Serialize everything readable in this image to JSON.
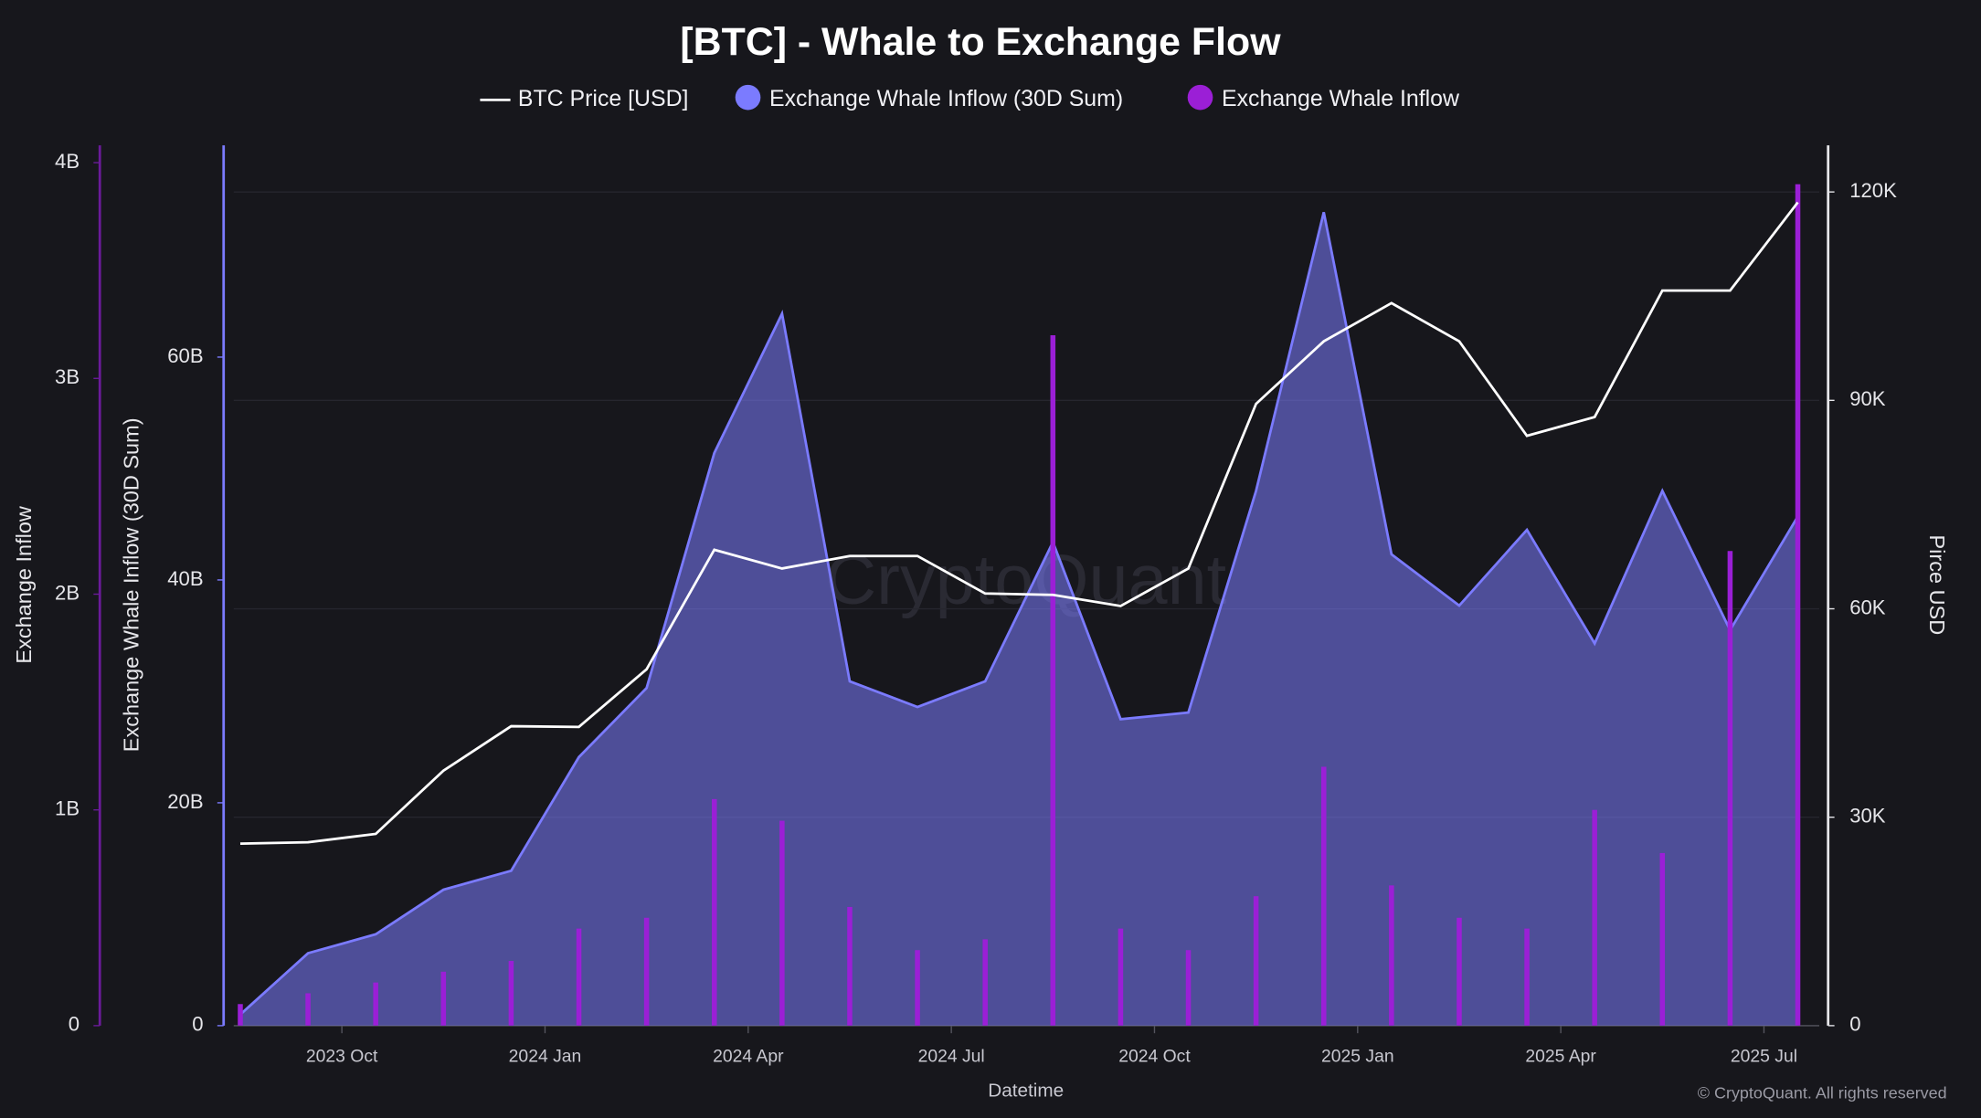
{
  "chart_data": {
    "type": "combo",
    "title": "[BTC] - Whale to Exchange Flow",
    "x_label": "Datetime",
    "y_label": "Exchange Whale Inflow (30D Sum)",
    "y2_label": "Pirce USD",
    "y3_label": "Exchange Inflow",
    "watermark": "CryptoQuant",
    "copyright": "© CryptoQuant. All rights reserved",
    "x": [
      "2023 Aug",
      "2023 Sep",
      "2023 Oct",
      "2023 Nov",
      "2023 Dec",
      "2024 Jan",
      "2024 Feb",
      "2024 Mar",
      "2024 Apr",
      "2024 May",
      "2024 Jun",
      "2024 Jul",
      "2024 Aug",
      "2024 Sep",
      "2024 Oct",
      "2024 Nov",
      "2024 Dec",
      "2025 Jan",
      "2025 Feb",
      "2025 Mar",
      "2025 Apr",
      "2025 May",
      "2025 Jun",
      "2025 Jul"
    ],
    "xticks": [
      "2023 Oct",
      "2024 Jan",
      "2024 Apr",
      "2024 Jul",
      "2024 Oct",
      "2025 Jan",
      "2025 Apr",
      "2025 Jul"
    ],
    "series": [
      {
        "name": "BTC Price [USD]",
        "type": "line",
        "axis": "y2",
        "color": "#ffffff",
        "values": [
          26200,
          26400,
          27600,
          36700,
          43100,
          43000,
          51300,
          68500,
          65800,
          67600,
          67600,
          62200,
          62000,
          60400,
          65800,
          89500,
          98500,
          104000,
          98500,
          84900,
          87600,
          105800,
          105800,
          118500
        ]
      },
      {
        "name": "Exchange Whale Inflow (30D Sum)",
        "type": "area",
        "axis": "y",
        "color": "#7b7bff",
        "values": [
          1000000000,
          6500000000,
          8200000000,
          12200000000,
          13900000000,
          24100000000,
          30300000000,
          51400000000,
          63900000000,
          30900000000,
          28600000000,
          30900000000,
          43400000000,
          27500000000,
          28100000000,
          48000000000,
          73000000000,
          42300000000,
          37700000000,
          44500000000,
          34300000000,
          48000000000,
          35500000000,
          45700000000
        ]
      },
      {
        "name": "Exchange Whale Inflow",
        "type": "bar",
        "axis": "y3",
        "color": "#9b1fd6",
        "values": [
          100000000,
          150000000,
          200000000,
          250000000,
          300000000,
          450000000,
          500000000,
          1050000000,
          950000000,
          550000000,
          350000000,
          400000000,
          3200000000,
          450000000,
          350000000,
          600000000,
          1200000000,
          650000000,
          500000000,
          450000000,
          1000000000,
          800000000,
          2200000000,
          3900000000
        ]
      }
    ],
    "ylim": [
      0,
      79000000000
    ],
    "yticks": [
      {
        "value": 0,
        "label": "0"
      },
      {
        "value": 20000000000,
        "label": "20B"
      },
      {
        "value": 40000000000,
        "label": "40B"
      },
      {
        "value": 60000000000,
        "label": "60B"
      }
    ],
    "y2lim": [
      0,
      126700
    ],
    "y2ticks": [
      {
        "value": 0,
        "label": "0"
      },
      {
        "value": 30000,
        "label": "30K"
      },
      {
        "value": 60000,
        "label": "60K"
      },
      {
        "value": 90000,
        "label": "90K"
      },
      {
        "value": 120000,
        "label": "120K"
      }
    ],
    "y3lim": [
      0,
      4080000000
    ],
    "y3ticks": [
      {
        "value": 0,
        "label": "0"
      },
      {
        "value": 1000000000,
        "label": "1B"
      },
      {
        "value": 2000000000,
        "label": "2B"
      },
      {
        "value": 3000000000,
        "label": "3B"
      },
      {
        "value": 4000000000,
        "label": "4B"
      }
    ],
    "grid": true
  }
}
